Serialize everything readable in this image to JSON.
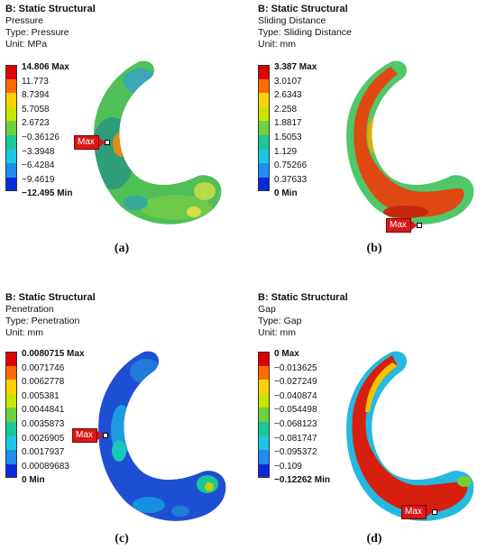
{
  "panels": [
    {
      "id": "a",
      "header": {
        "title": "B: Static Structural",
        "line2": "Pressure",
        "line3": "Type: Pressure",
        "line4": "Unit: MPa"
      },
      "legend": [
        "14.806 Max",
        "11.773",
        "8.7394",
        "5.7058",
        "2.6723",
        "−0.36126",
        "−3.3948",
        "−6.4284",
        "−9.4619",
        "−12.495 Min"
      ],
      "max_marker": "Max",
      "caption": "(a)"
    },
    {
      "id": "b",
      "header": {
        "title": "B: Static Structural",
        "line2": "Sliding Distance",
        "line3": "Type: Sliding Distance",
        "line4": "Unit: mm"
      },
      "legend": [
        "3.387 Max",
        "3.0107",
        "2.6343",
        "2.258",
        "1.8817",
        "1.5053",
        "1.129",
        "0.75266",
        "0.37633",
        "0 Min"
      ],
      "max_marker": "Max",
      "caption": "(b)"
    },
    {
      "id": "c",
      "header": {
        "title": "B: Static Structural",
        "line2": "Penetration",
        "line3": "Type: Penetration",
        "line4": "Unit: mm"
      },
      "legend": [
        "0.0080715 Max",
        "0.0071746",
        "0.0062778",
        "0.005381",
        "0.0044841",
        "0.0035873",
        "0.0026905",
        "0.0017937",
        "0.00089683",
        "0 Min"
      ],
      "max_marker": "Max",
      "caption": "(c)"
    },
    {
      "id": "d",
      "header": {
        "title": "B: Static Structural",
        "line2": "Gap",
        "line3": "Type: Gap",
        "line4": "Unit: mm"
      },
      "legend": [
        "0 Max",
        "−0.013625",
        "−0.027249",
        "−0.040874",
        "−0.054498",
        "−0.068123",
        "−0.081747",
        "−0.095372",
        "−0.109",
        "−0.12262 Min"
      ],
      "max_marker": "Max",
      "caption": "(d)"
    }
  ],
  "colors": {
    "scale": [
      "#e00000",
      "#ff6a00",
      "#ffd200",
      "#c8e600",
      "#6ed23c",
      "#19c896",
      "#19c8e6",
      "#1e8cf0",
      "#0a28dc"
    ]
  }
}
